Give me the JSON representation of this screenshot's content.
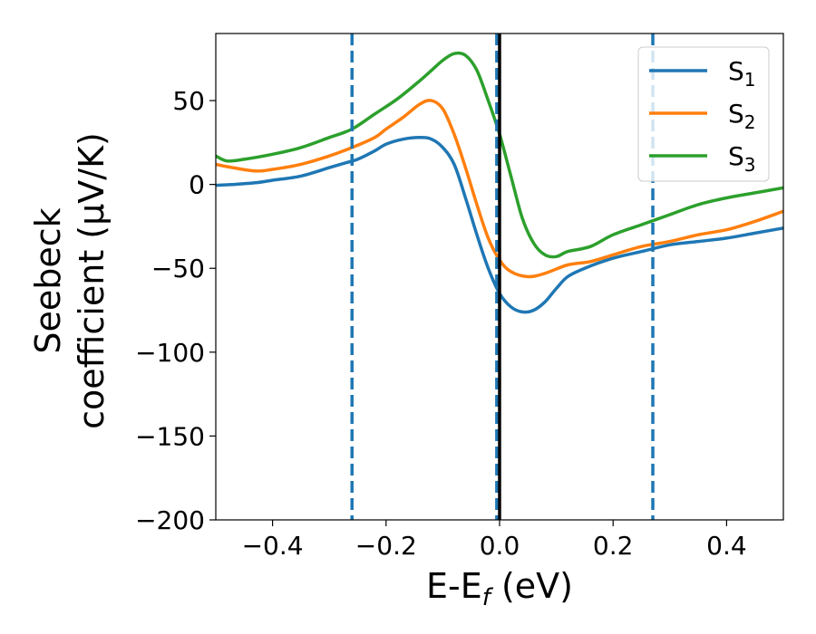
{
  "chart_data": {
    "type": "line",
    "title": "",
    "xlabel": "E-E",
    "xlabel_sub": "f",
    "xlabel_unit": " (eV)",
    "ylabel_line1": "Seebeck",
    "ylabel_line2": "coefficient  (μV/K)",
    "xlim": [
      -0.5,
      0.5
    ],
    "ylim": [
      -200,
      90
    ],
    "xticks": [
      -0.4,
      -0.2,
      0.0,
      0.2,
      0.4
    ],
    "xtick_labels": [
      "−0.4",
      "−0.2",
      "0.0",
      "0.2",
      "0.4"
    ],
    "yticks": [
      -200,
      -150,
      -100,
      -50,
      0,
      50
    ],
    "ytick_labels": [
      "−200",
      "−150",
      "−100",
      "−50",
      "0",
      "50"
    ],
    "vlines_dashed": [
      -0.26,
      -0.005,
      0.27
    ],
    "vline_solid": 0.0,
    "legend_position": "top-right",
    "series": [
      {
        "name": "S",
        "sub": "1",
        "color": "#1f77b4",
        "points": [
          [
            -0.5,
            -0.5
          ],
          [
            -0.47,
            0
          ],
          [
            -0.43,
            1
          ],
          [
            -0.4,
            2.5
          ],
          [
            -0.35,
            5
          ],
          [
            -0.3,
            10
          ],
          [
            -0.27,
            13
          ],
          [
            -0.25,
            15
          ],
          [
            -0.22,
            20
          ],
          [
            -0.2,
            24
          ],
          [
            -0.17,
            27
          ],
          [
            -0.14,
            28
          ],
          [
            -0.12,
            27
          ],
          [
            -0.1,
            22
          ],
          [
            -0.08,
            12
          ],
          [
            -0.06,
            -8
          ],
          [
            -0.04,
            -30
          ],
          [
            -0.02,
            -50
          ],
          [
            0.0,
            -65
          ],
          [
            0.02,
            -73
          ],
          [
            0.04,
            -76
          ],
          [
            0.06,
            -75
          ],
          [
            0.08,
            -70
          ],
          [
            0.1,
            -62
          ],
          [
            0.12,
            -55
          ],
          [
            0.15,
            -50
          ],
          [
            0.2,
            -44
          ],
          [
            0.25,
            -40
          ],
          [
            0.3,
            -36
          ],
          [
            0.35,
            -34
          ],
          [
            0.4,
            -32
          ],
          [
            0.45,
            -29
          ],
          [
            0.5,
            -26
          ]
        ]
      },
      {
        "name": "S",
        "sub": "2",
        "color": "#ff7f0e",
        "points": [
          [
            -0.5,
            12
          ],
          [
            -0.47,
            10
          ],
          [
            -0.43,
            8
          ],
          [
            -0.4,
            9
          ],
          [
            -0.35,
            12
          ],
          [
            -0.3,
            17
          ],
          [
            -0.26,
            22
          ],
          [
            -0.22,
            28
          ],
          [
            -0.2,
            33
          ],
          [
            -0.17,
            40
          ],
          [
            -0.14,
            48
          ],
          [
            -0.12,
            50
          ],
          [
            -0.1,
            45
          ],
          [
            -0.08,
            30
          ],
          [
            -0.06,
            10
          ],
          [
            -0.04,
            -12
          ],
          [
            -0.02,
            -32
          ],
          [
            0.0,
            -45
          ],
          [
            0.02,
            -52
          ],
          [
            0.05,
            -55
          ],
          [
            0.08,
            -53
          ],
          [
            0.12,
            -48
          ],
          [
            0.16,
            -46
          ],
          [
            0.2,
            -42
          ],
          [
            0.25,
            -37
          ],
          [
            0.3,
            -34
          ],
          [
            0.35,
            -30
          ],
          [
            0.4,
            -27
          ],
          [
            0.45,
            -22
          ],
          [
            0.5,
            -16
          ]
        ]
      },
      {
        "name": "S",
        "sub": "3",
        "color": "#2ca02c",
        "points": [
          [
            -0.5,
            17
          ],
          [
            -0.48,
            14
          ],
          [
            -0.45,
            15
          ],
          [
            -0.4,
            18
          ],
          [
            -0.35,
            22
          ],
          [
            -0.3,
            28
          ],
          [
            -0.26,
            33
          ],
          [
            -0.22,
            42
          ],
          [
            -0.18,
            51
          ],
          [
            -0.14,
            62
          ],
          [
            -0.12,
            68
          ],
          [
            -0.1,
            74
          ],
          [
            -0.08,
            78
          ],
          [
            -0.06,
            77
          ],
          [
            -0.04,
            68
          ],
          [
            -0.02,
            50
          ],
          [
            0.0,
            30
          ],
          [
            0.02,
            5
          ],
          [
            0.04,
            -20
          ],
          [
            0.06,
            -35
          ],
          [
            0.08,
            -42
          ],
          [
            0.1,
            -43
          ],
          [
            0.12,
            -40
          ],
          [
            0.16,
            -37
          ],
          [
            0.2,
            -30
          ],
          [
            0.25,
            -24
          ],
          [
            0.3,
            -18
          ],
          [
            0.35,
            -12
          ],
          [
            0.4,
            -8
          ],
          [
            0.45,
            -5
          ],
          [
            0.5,
            -2
          ]
        ]
      }
    ]
  }
}
